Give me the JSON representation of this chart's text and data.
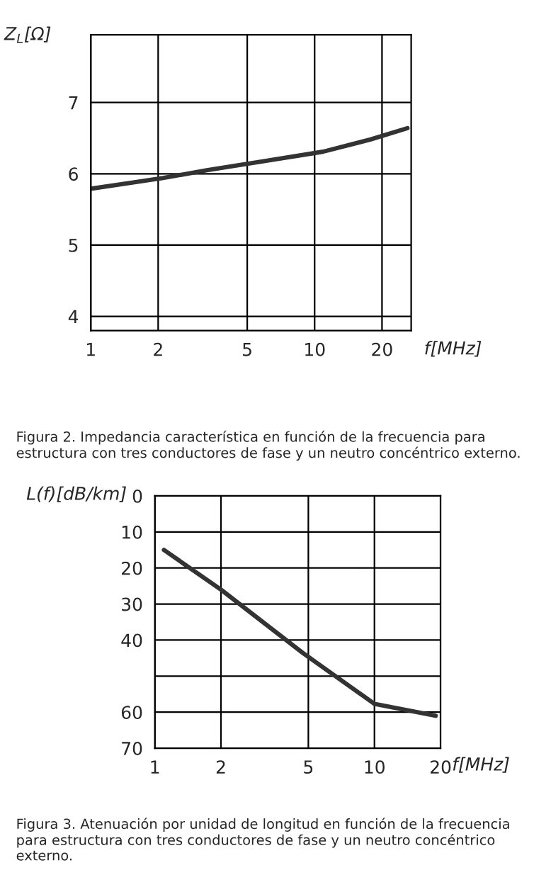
{
  "chart_data": [
    {
      "type": "line",
      "ylabel": "Z$_{L}$[Ω]",
      "xlabel": "f[MHz]",
      "log": "x",
      "grid": true,
      "line_style": "solid",
      "marker": "none",
      "xlim": [
        1,
        27
      ],
      "xticks": [
        1,
        2,
        5,
        10,
        20
      ],
      "ylim": [
        3.8,
        7.95
      ],
      "yticks": [
        4,
        5,
        6,
        7
      ],
      "series": [
        {
          "color": "#333333",
          "x": [
            1,
            2.1,
            3.3,
            6,
            10.9,
            17.7,
            26
          ],
          "values": [
            5.79,
            5.94,
            6.05,
            6.18,
            6.31,
            6.48,
            6.64
          ]
        }
      ],
      "annotations": [
        "Figura 2. Impedancia característica en función de la frecuencia para estructura con tres conductores de fase y un neutro concéntrico externo."
      ]
    },
    {
      "type": "line",
      "ylabel": "L(f)[dB/km]",
      "xlabel": "f[MHz]",
      "log": "x",
      "grid": true,
      "line_style": "solid",
      "marker": "none",
      "xlim": [
        1,
        20
      ],
      "xticks": [
        1,
        2,
        5,
        10,
        20
      ],
      "ylim": [
        70,
        0
      ],
      "yticks": [
        0,
        10,
        20,
        30,
        40,
        {
          "value": 50,
          "label": null
        },
        60,
        70
      ],
      "series": [
        {
          "color": "#333333",
          "x": [
            1.1,
            2,
            4.7,
            10,
            19
          ],
          "values": [
            15,
            26,
            43.5,
            57.7,
            61
          ]
        }
      ],
      "annotations": [
        "Figura 3. Atenuación por unidad de longitud en función de la frecuencia para estructura con tres conductores de fase y un neutro concéntrico externo."
      ]
    }
  ]
}
